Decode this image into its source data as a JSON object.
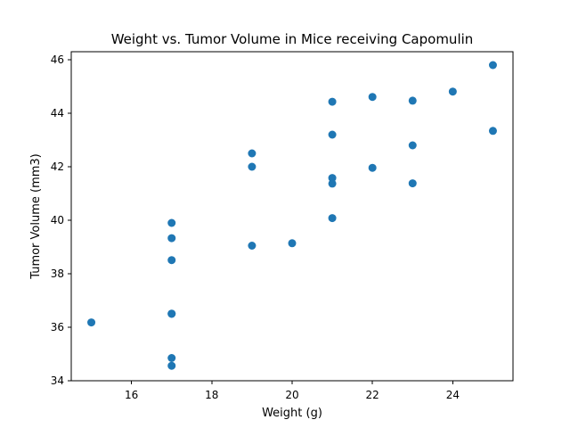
{
  "chart_data": {
    "type": "scatter",
    "title": "Weight vs. Tumor Volume in Mice receiving Capomulin",
    "xlabel": "Weight (g)",
    "ylabel": "Tumor Volume (mm3)",
    "xlim": [
      14.5,
      25.5
    ],
    "ylim": [
      34.0,
      46.3
    ],
    "xticks": [
      16,
      18,
      20,
      22,
      24
    ],
    "yticks": [
      34,
      36,
      38,
      40,
      42,
      44,
      46
    ],
    "grid": false,
    "colors": {
      "marker": "#1f77b4",
      "axes": "#000000",
      "background": "#ffffff"
    },
    "series": [
      {
        "points": [
          {
            "x": 15,
            "y": 36.18
          },
          {
            "x": 17,
            "y": 39.9
          },
          {
            "x": 17,
            "y": 39.33
          },
          {
            "x": 17,
            "y": 38.51
          },
          {
            "x": 17,
            "y": 36.51
          },
          {
            "x": 17,
            "y": 36.5
          },
          {
            "x": 17,
            "y": 34.85
          },
          {
            "x": 17,
            "y": 34.56
          },
          {
            "x": 19,
            "y": 42.5
          },
          {
            "x": 19,
            "y": 42.0
          },
          {
            "x": 19,
            "y": 39.05
          },
          {
            "x": 20,
            "y": 39.14
          },
          {
            "x": 21,
            "y": 44.43
          },
          {
            "x": 21,
            "y": 43.2
          },
          {
            "x": 21,
            "y": 41.58
          },
          {
            "x": 21,
            "y": 41.37
          },
          {
            "x": 21,
            "y": 40.08
          },
          {
            "x": 22,
            "y": 44.61
          },
          {
            "x": 22,
            "y": 41.96
          },
          {
            "x": 23,
            "y": 44.47
          },
          {
            "x": 23,
            "y": 42.8
          },
          {
            "x": 23,
            "y": 41.38
          },
          {
            "x": 24,
            "y": 44.81
          },
          {
            "x": 25,
            "y": 45.8
          },
          {
            "x": 25,
            "y": 43.34
          }
        ]
      }
    ]
  }
}
